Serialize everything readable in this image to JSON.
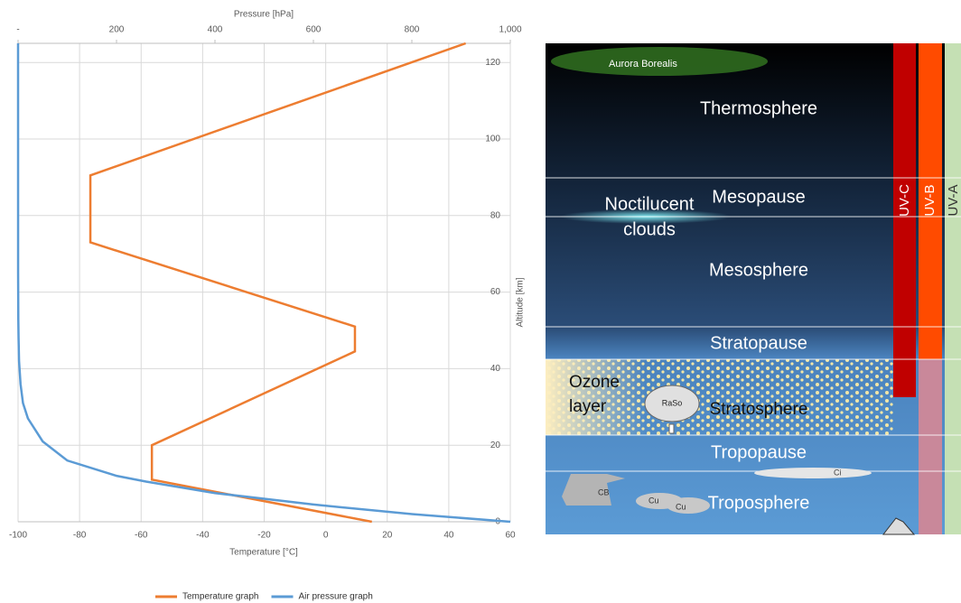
{
  "chart_data": {
    "type": "line",
    "x2label": "Pressure [hPa]",
    "xlabel": "Temperature [°C]",
    "ylabel": "Altitude [km]",
    "xlim": [
      -100,
      60
    ],
    "xticks": [
      -100,
      -80,
      -60,
      -40,
      -20,
      0,
      20,
      40,
      60
    ],
    "x2lim": [
      0,
      1000
    ],
    "x2ticks": [
      {
        "value": 0,
        "label": "-"
      },
      200,
      400,
      600,
      800,
      {
        "value": 1000,
        "label": "1,000"
      }
    ],
    "ylim": [
      0,
      125
    ],
    "yticks": [
      0,
      20,
      40,
      60,
      80,
      100,
      120
    ],
    "grid": true,
    "series": [
      {
        "name": "Temperature graph",
        "color": "#ed7d31",
        "x": [
          15,
          -56.5,
          -56.5,
          9.5,
          9.5,
          -76.5,
          -76.5,
          45.5
        ],
        "values": [
          0,
          11,
          20,
          44.5,
          51,
          73,
          90.5,
          125
        ]
      },
      {
        "name": "Air pressure graph",
        "color": "#5b9bd5",
        "axis": "x2",
        "x": [
          1000,
          800,
          600,
          400,
          260,
          200,
          100,
          50,
          20,
          10,
          5,
          2,
          1,
          0.5,
          0.1,
          0
        ],
        "values": [
          0,
          2,
          4.5,
          7.5,
          10.5,
          12,
          16,
          21,
          27,
          31,
          36,
          42,
          48,
          53,
          65,
          125
        ]
      }
    ]
  },
  "diagram": {
    "layers": {
      "thermosphere": "Thermosphere",
      "mesopause": "Mesopause",
      "mesosphere": "Mesosphere",
      "stratopause": "Stratopause",
      "stratosphere": "Stratosphere",
      "tropopause": "Tropopause",
      "troposphere": "Troposphere"
    },
    "features": {
      "aurora": "Aurora Borealis",
      "noctilucent": [
        "Noctilucent",
        "clouds"
      ],
      "ozone": [
        "Ozone",
        "layer"
      ],
      "raso": "RaSo",
      "ci": "Ci",
      "cb": "CB",
      "cu": [
        "Cu",
        "Cu"
      ]
    },
    "uv_bands": [
      "UV-C",
      "UV-B",
      "UV-A"
    ]
  }
}
